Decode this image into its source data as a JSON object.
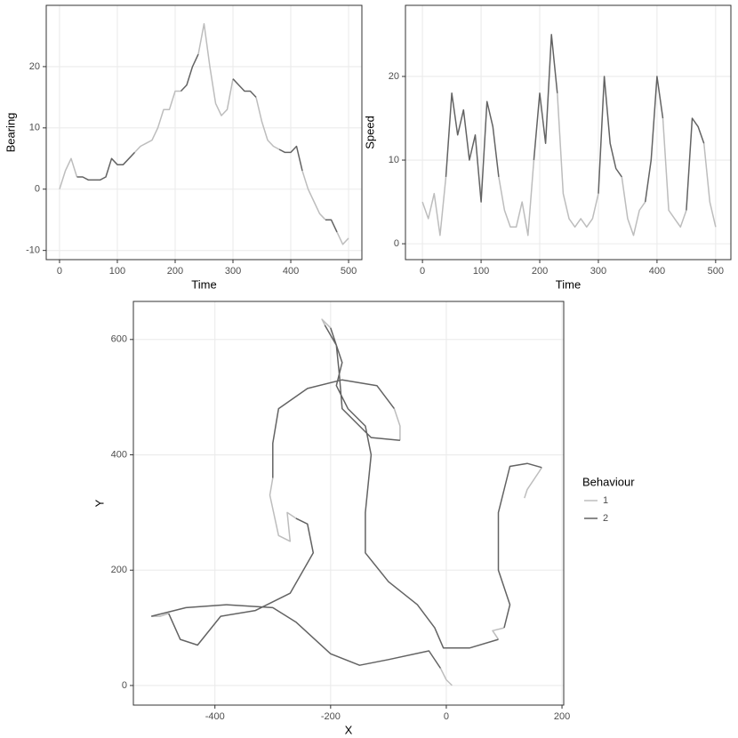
{
  "chart_data": [
    {
      "type": "line",
      "x_label": "Time",
      "y_label": "Bearing",
      "x": [
        0,
        10,
        20,
        30,
        40,
        50,
        60,
        70,
        80,
        90,
        100,
        110,
        120,
        130,
        140,
        150,
        160,
        170,
        180,
        190,
        200,
        210,
        220,
        230,
        240,
        250,
        260,
        270,
        280,
        290,
        300,
        310,
        320,
        330,
        340,
        350,
        360,
        370,
        380,
        390,
        400,
        410,
        420,
        430,
        440,
        450,
        460,
        470,
        480,
        490,
        500
      ],
      "series": [
        {
          "name": "1",
          "color": "#bdbdbd",
          "values": [
            0,
            3,
            5,
            2,
            null,
            null,
            null,
            null,
            null,
            null,
            null,
            null,
            null,
            6,
            7,
            7.5,
            8,
            10,
            13,
            13,
            16,
            16,
            null,
            null,
            22,
            27,
            20,
            14,
            12,
            13,
            18,
            null,
            null,
            null,
            15,
            11,
            8,
            7,
            6.5,
            null,
            null,
            null,
            3,
            0,
            -2,
            -4,
            -5,
            null,
            -7,
            -9,
            -8
          ]
        },
        {
          "name": "2",
          "color": "#636363",
          "values": [
            null,
            null,
            null,
            2,
            2,
            1.5,
            1.5,
            1.5,
            2,
            5,
            4,
            4,
            5,
            6,
            null,
            null,
            null,
            null,
            null,
            null,
            null,
            16,
            17,
            20,
            22,
            null,
            null,
            null,
            null,
            null,
            18,
            17,
            16,
            16,
            15,
            null,
            null,
            null,
            6.5,
            6,
            6,
            7,
            3,
            null,
            null,
            null,
            -5,
            -5,
            -7,
            null,
            null
          ]
        }
      ],
      "xlim": [
        -23,
        523
      ],
      "xticks": [
        0,
        100,
        200,
        300,
        400,
        500
      ],
      "ylim": [
        -11.5,
        30
      ],
      "yticks": [
        -10,
        0,
        10,
        20
      ],
      "grid": true
    },
    {
      "type": "line",
      "x_label": "Time",
      "y_label": "Speed",
      "x": [
        0,
        10,
        20,
        30,
        40,
        50,
        60,
        70,
        80,
        90,
        100,
        110,
        120,
        130,
        140,
        150,
        160,
        170,
        180,
        190,
        200,
        210,
        220,
        230,
        240,
        250,
        260,
        270,
        280,
        290,
        300,
        310,
        320,
        330,
        340,
        350,
        360,
        370,
        380,
        390,
        400,
        410,
        420,
        430,
        440,
        450,
        460,
        470,
        480,
        490,
        500
      ],
      "series": [
        {
          "name": "1",
          "color": "#bdbdbd",
          "values": [
            5,
            3,
            6,
            1,
            8,
            null,
            null,
            null,
            null,
            null,
            null,
            null,
            null,
            8,
            4,
            2,
            2,
            5,
            1,
            10,
            null,
            null,
            null,
            18,
            6,
            3,
            2,
            3,
            2,
            3,
            6,
            null,
            null,
            null,
            8,
            3,
            1,
            4,
            5,
            null,
            null,
            15,
            4,
            3,
            2,
            4,
            null,
            null,
            12,
            5,
            2
          ]
        },
        {
          "name": "2",
          "color": "#636363",
          "values": [
            null,
            null,
            null,
            null,
            8,
            18,
            13,
            16,
            10,
            13,
            5,
            17,
            14,
            8,
            null,
            null,
            null,
            null,
            null,
            10,
            18,
            12,
            25,
            18,
            null,
            null,
            null,
            null,
            null,
            null,
            6,
            20,
            12,
            9,
            8,
            null,
            null,
            null,
            5,
            10,
            20,
            15,
            null,
            null,
            null,
            4,
            15,
            14,
            12,
            null,
            null
          ]
        }
      ],
      "xlim": [
        -29,
        526
      ],
      "xticks": [
        0,
        100,
        200,
        300,
        400,
        500
      ],
      "ylim": [
        -1.9,
        28.5
      ],
      "yticks": [
        0,
        10,
        20
      ],
      "grid": true
    },
    {
      "type": "path",
      "x_label": "X",
      "y_label": "Y",
      "legend_title": "Behaviour",
      "legend": "right",
      "x": [
        10,
        0,
        -10,
        -30,
        -100,
        -150,
        -200,
        -260,
        -300,
        -380,
        -450,
        -510,
        -495,
        -480,
        -460,
        -430,
        -390,
        -330,
        -270,
        -230,
        -240,
        -260,
        -275,
        -270,
        -290,
        -305,
        -300,
        -300,
        -290,
        -240,
        -180,
        -120,
        -90,
        -80,
        -80,
        -130,
        -180,
        -185,
        -190,
        -210,
        -215,
        -200,
        -180,
        -190,
        -170,
        -140,
        -130,
        -140,
        -140,
        -100,
        -50,
        -20,
        -5,
        40,
        90,
        80,
        100,
        110,
        90,
        90,
        110,
        140,
        165,
        160,
        140,
        135
      ],
      "series": [
        {
          "name": "1",
          "color": "#bdbdbd",
          "values": [
            0,
            10,
            30,
            null,
            null,
            null,
            null,
            null,
            null,
            null,
            null,
            120,
            120,
            125,
            null,
            null,
            null,
            null,
            null,
            null,
            null,
            290,
            300,
            250,
            260,
            330,
            360,
            null,
            null,
            null,
            null,
            null,
            480,
            450,
            425,
            null,
            null,
            null,
            null,
            625,
            635,
            620,
            null,
            null,
            null,
            null,
            null,
            null,
            null,
            null,
            null,
            null,
            null,
            null,
            80,
            95,
            100,
            null,
            null,
            null,
            null,
            null,
            378,
            370,
            340,
            325
          ]
        },
        {
          "name": "2",
          "color": "#636363",
          "values": [
            null,
            null,
            30,
            60,
            45,
            35,
            55,
            110,
            135,
            140,
            135,
            120,
            null,
            125,
            80,
            70,
            120,
            130,
            160,
            230,
            280,
            290,
            null,
            null,
            null,
            null,
            360,
            420,
            480,
            515,
            530,
            520,
            480,
            null,
            425,
            430,
            480,
            540,
            590,
            625,
            null,
            620,
            560,
            520,
            480,
            450,
            400,
            300,
            230,
            180,
            140,
            100,
            65,
            65,
            80,
            null,
            100,
            140,
            200,
            300,
            380,
            385,
            378,
            null,
            null,
            null
          ]
        }
      ],
      "xlim": [
        -541,
        203
      ],
      "xticks": [
        -400,
        -200,
        0,
        200
      ],
      "ylim": [
        -34,
        666
      ],
      "yticks": [
        0,
        200,
        400,
        600
      ],
      "grid": true
    }
  ]
}
